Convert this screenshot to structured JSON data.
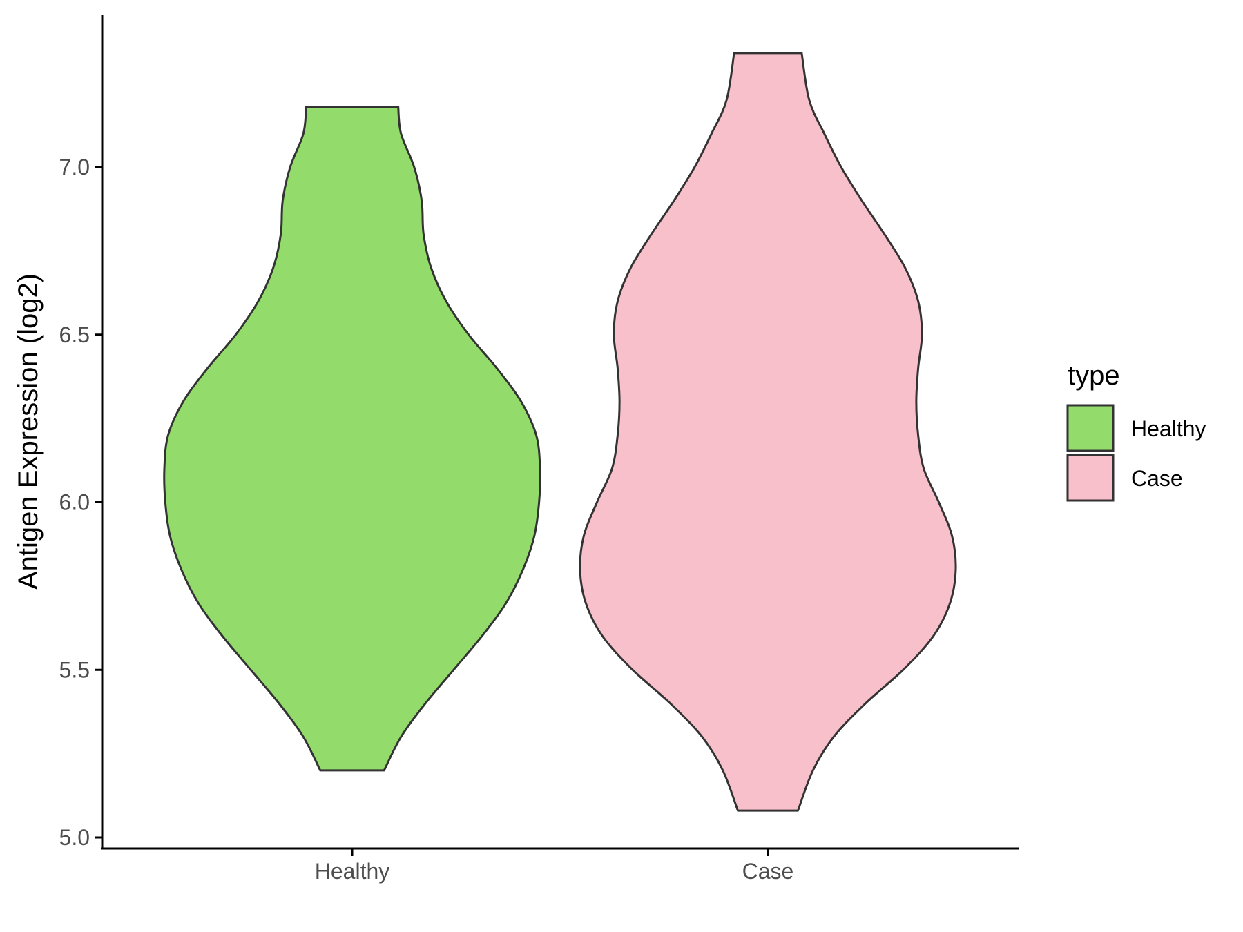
{
  "chart_data": {
    "type": "violin",
    "title": "",
    "xlabel": "",
    "ylabel": "Antigen Expression (log2)",
    "ylim": [
      4.98,
      7.45
    ],
    "y_ticks": [
      5.0,
      5.5,
      6.0,
      6.5,
      7.0
    ],
    "y_tick_labels": [
      "5.0",
      "5.5",
      "6.0",
      "6.5",
      "7.0"
    ],
    "categories": [
      "Healthy",
      "Case"
    ],
    "grid": false,
    "legend": {
      "title": "type",
      "position": "right",
      "entries": [
        {
          "label": "Healthy",
          "color": "#93DC6B"
        },
        {
          "label": "Case",
          "color": "#F8C0CB"
        }
      ]
    },
    "series": [
      {
        "category": "Healthy",
        "color": "#93DC6B",
        "y_min": 5.2,
        "y_max": 7.18,
        "density": [
          [
            5.2,
            0.17
          ],
          [
            5.3,
            0.26
          ],
          [
            5.4,
            0.39
          ],
          [
            5.5,
            0.54
          ],
          [
            5.6,
            0.69
          ],
          [
            5.7,
            0.82
          ],
          [
            5.8,
            0.91
          ],
          [
            5.9,
            0.97
          ],
          [
            6.0,
            0.995
          ],
          [
            6.1,
            1.0
          ],
          [
            6.2,
            0.98
          ],
          [
            6.3,
            0.9
          ],
          [
            6.4,
            0.77
          ],
          [
            6.5,
            0.62
          ],
          [
            6.6,
            0.5
          ],
          [
            6.7,
            0.42
          ],
          [
            6.8,
            0.38
          ],
          [
            6.9,
            0.37
          ],
          [
            7.0,
            0.33
          ],
          [
            7.1,
            0.26
          ],
          [
            7.18,
            0.245
          ]
        ]
      },
      {
        "category": "Case",
        "color": "#F8C0CB",
        "y_min": 5.08,
        "y_max": 7.34,
        "density": [
          [
            5.08,
            0.16
          ],
          [
            5.2,
            0.24
          ],
          [
            5.3,
            0.35
          ],
          [
            5.4,
            0.52
          ],
          [
            5.5,
            0.72
          ],
          [
            5.6,
            0.88
          ],
          [
            5.7,
            0.97
          ],
          [
            5.8,
            1.0
          ],
          [
            5.9,
            0.98
          ],
          [
            6.0,
            0.91
          ],
          [
            6.1,
            0.83
          ],
          [
            6.2,
            0.8
          ],
          [
            6.3,
            0.79
          ],
          [
            6.4,
            0.8
          ],
          [
            6.5,
            0.82
          ],
          [
            6.6,
            0.8
          ],
          [
            6.7,
            0.73
          ],
          [
            6.8,
            0.62
          ],
          [
            6.9,
            0.5
          ],
          [
            7.0,
            0.39
          ],
          [
            7.1,
            0.3
          ],
          [
            7.2,
            0.22
          ],
          [
            7.34,
            0.18
          ]
        ]
      }
    ]
  }
}
